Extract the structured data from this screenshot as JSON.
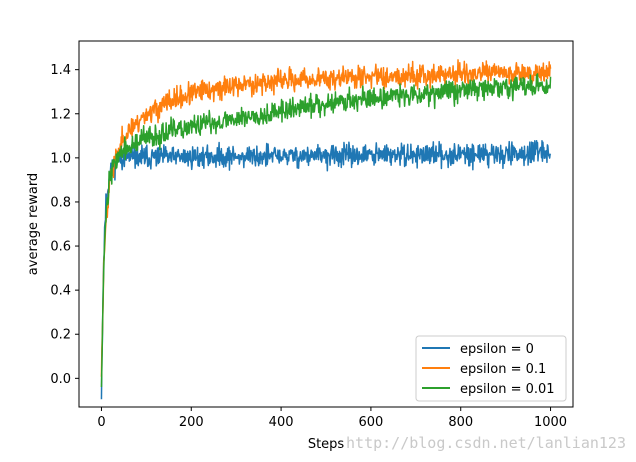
{
  "chart_data": {
    "type": "line",
    "title": "",
    "xlabel": "Steps",
    "ylabel": "average reward",
    "xlim": [
      -50,
      1050
    ],
    "ylim": [
      -0.13,
      1.53
    ],
    "xticks": [
      0,
      200,
      400,
      600,
      800,
      1000
    ],
    "yticks": [
      0.0,
      0.2,
      0.4,
      0.6,
      0.8,
      1.0,
      1.2,
      1.4
    ],
    "xtick_labels": [
      "0",
      "200",
      "400",
      "600",
      "800",
      "1000"
    ],
    "ytick_labels": [
      "0.0",
      "0.2",
      "0.4",
      "0.6",
      "0.8",
      "1.0",
      "1.2",
      "1.4"
    ],
    "grid": false,
    "legend_position": "lower-right",
    "n_steps": 1000,
    "series": [
      {
        "name": "epsilon = 0",
        "color": "#1f77b4",
        "trend": [
          [
            0,
            -0.05
          ],
          [
            5,
            0.55
          ],
          [
            10,
            0.8
          ],
          [
            20,
            0.95
          ],
          [
            40,
            1.0
          ],
          [
            1000,
            1.02
          ]
        ],
        "noise": 0.025,
        "seed": 11
      },
      {
        "name": "epsilon = 0.1",
        "color": "#ff7f0e",
        "trend": [
          [
            0,
            0.02
          ],
          [
            5,
            0.5
          ],
          [
            10,
            0.72
          ],
          [
            20,
            0.92
          ],
          [
            50,
            1.1
          ],
          [
            100,
            1.2
          ],
          [
            150,
            1.25
          ],
          [
            200,
            1.29
          ],
          [
            300,
            1.33
          ],
          [
            400,
            1.35
          ],
          [
            600,
            1.37
          ],
          [
            800,
            1.38
          ],
          [
            1000,
            1.39
          ]
        ],
        "noise": 0.025,
        "seed": 23
      },
      {
        "name": "epsilon = 0.01",
        "color": "#2ca02c",
        "trend": [
          [
            0,
            0.0
          ],
          [
            5,
            0.5
          ],
          [
            10,
            0.75
          ],
          [
            20,
            0.93
          ],
          [
            40,
            1.02
          ],
          [
            100,
            1.09
          ],
          [
            200,
            1.14
          ],
          [
            300,
            1.18
          ],
          [
            400,
            1.21
          ],
          [
            500,
            1.25
          ],
          [
            600,
            1.27
          ],
          [
            700,
            1.29
          ],
          [
            800,
            1.31
          ],
          [
            900,
            1.32
          ],
          [
            1000,
            1.33
          ]
        ],
        "noise": 0.025,
        "seed": 37
      }
    ]
  },
  "watermark": "http://blog.csdn.net/lanlian123"
}
